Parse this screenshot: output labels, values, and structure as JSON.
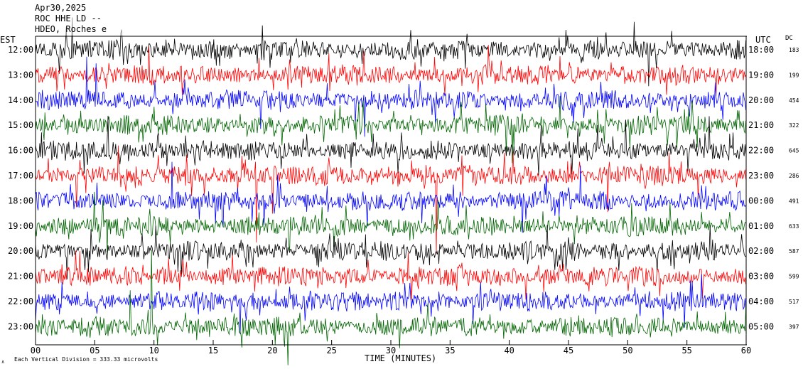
{
  "chart_data": {
    "type": "line",
    "header": {
      "date": "Apr30,2025",
      "station": "ROC HHE LD --",
      "location": "HDEO, Roches e"
    },
    "left_axis_label": "EST",
    "right_axis_label": "UTC",
    "dc_label": "DC",
    "xlabel": "TIME (MINUTES)",
    "x_ticks": [
      "00",
      "05",
      "10",
      "15",
      "20",
      "25",
      "30",
      "35",
      "40",
      "45",
      "50",
      "55",
      "60"
    ],
    "xlim": [
      0,
      60
    ],
    "scale_note": "Each Vertical Division =  333.33 microvolts",
    "trace_colors": [
      "#000000",
      "#ff0000",
      "#0000ff",
      "#006400"
    ],
    "traces": [
      {
        "est": "12:00",
        "utc": "18:00",
        "dc": "183"
      },
      {
        "est": "13:00",
        "utc": "19:00",
        "dc": "199"
      },
      {
        "est": "14:00",
        "utc": "20:00",
        "dc": "454"
      },
      {
        "est": "15:00",
        "utc": "21:00",
        "dc": "322"
      },
      {
        "est": "16:00",
        "utc": "22:00",
        "dc": "645"
      },
      {
        "est": "17:00",
        "utc": "23:00",
        "dc": "286"
      },
      {
        "est": "18:00",
        "utc": "00:00",
        "dc": "491"
      },
      {
        "est": "19:00",
        "utc": "01:00",
        "dc": "633"
      },
      {
        "est": "20:00",
        "utc": "02:00",
        "dc": "587"
      },
      {
        "est": "21:00",
        "utc": "03:00",
        "dc": "599"
      },
      {
        "est": "22:00",
        "utc": "04:00",
        "dc": "517"
      },
      {
        "est": "23:00",
        "utc": "05:00",
        "dc": "397"
      }
    ]
  }
}
